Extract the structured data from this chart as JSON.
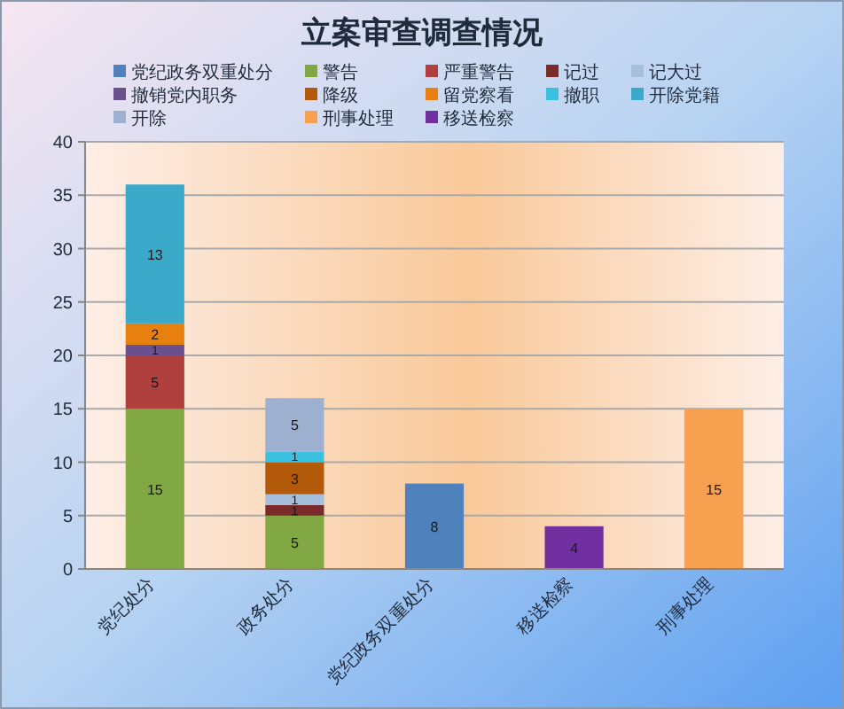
{
  "chart_data": {
    "type": "bar",
    "stacked": true,
    "title": "立案审查调查情况",
    "categories": [
      "党纪处分",
      "政务处分",
      "党纪政务双重处分",
      "移送检察",
      "刑事处理"
    ],
    "series": [
      {
        "name": "党纪政务双重处分",
        "color": "#4f81bd",
        "values": [
          null,
          null,
          8,
          null,
          null
        ]
      },
      {
        "name": "警告",
        "color": "#82a844",
        "values": [
          15,
          5,
          null,
          null,
          null
        ]
      },
      {
        "name": "严重警告",
        "color": "#b0403d",
        "values": [
          5,
          null,
          null,
          null,
          null
        ]
      },
      {
        "name": "记过",
        "color": "#7a2a28",
        "values": [
          null,
          1,
          null,
          null,
          null
        ]
      },
      {
        "name": "记大过",
        "color": "#a5bfdd",
        "values": [
          null,
          1,
          null,
          null,
          null
        ]
      },
      {
        "name": "撤销党内职务",
        "color": "#6b5090",
        "values": [
          1,
          null,
          null,
          null,
          null
        ]
      },
      {
        "name": "降级",
        "color": "#b35a0a",
        "values": [
          null,
          3,
          null,
          null,
          null
        ]
      },
      {
        "name": "留党察看",
        "color": "#e8800f",
        "values": [
          2,
          null,
          null,
          null,
          null
        ]
      },
      {
        "name": "撤职",
        "color": "#3cc0e0",
        "values": [
          null,
          1,
          null,
          null,
          null
        ]
      },
      {
        "name": "开除党籍",
        "color": "#3ba9c9",
        "values": [
          13,
          null,
          null,
          null,
          null
        ]
      },
      {
        "name": "开除",
        "color": "#9eb0cf",
        "values": [
          null,
          5,
          null,
          null,
          null
        ]
      },
      {
        "name": "刑事处理",
        "color": "#f7a04f",
        "values": [
          null,
          null,
          null,
          null,
          15
        ]
      },
      {
        "name": "移送检察",
        "color": "#7030a0",
        "values": [
          null,
          null,
          null,
          4,
          null
        ]
      }
    ],
    "ylim": [
      0,
      40
    ],
    "yticks": [
      0,
      5,
      10,
      15,
      20,
      25,
      30,
      35,
      40
    ],
    "grid": "y",
    "legend": "top",
    "data_labels": true
  }
}
